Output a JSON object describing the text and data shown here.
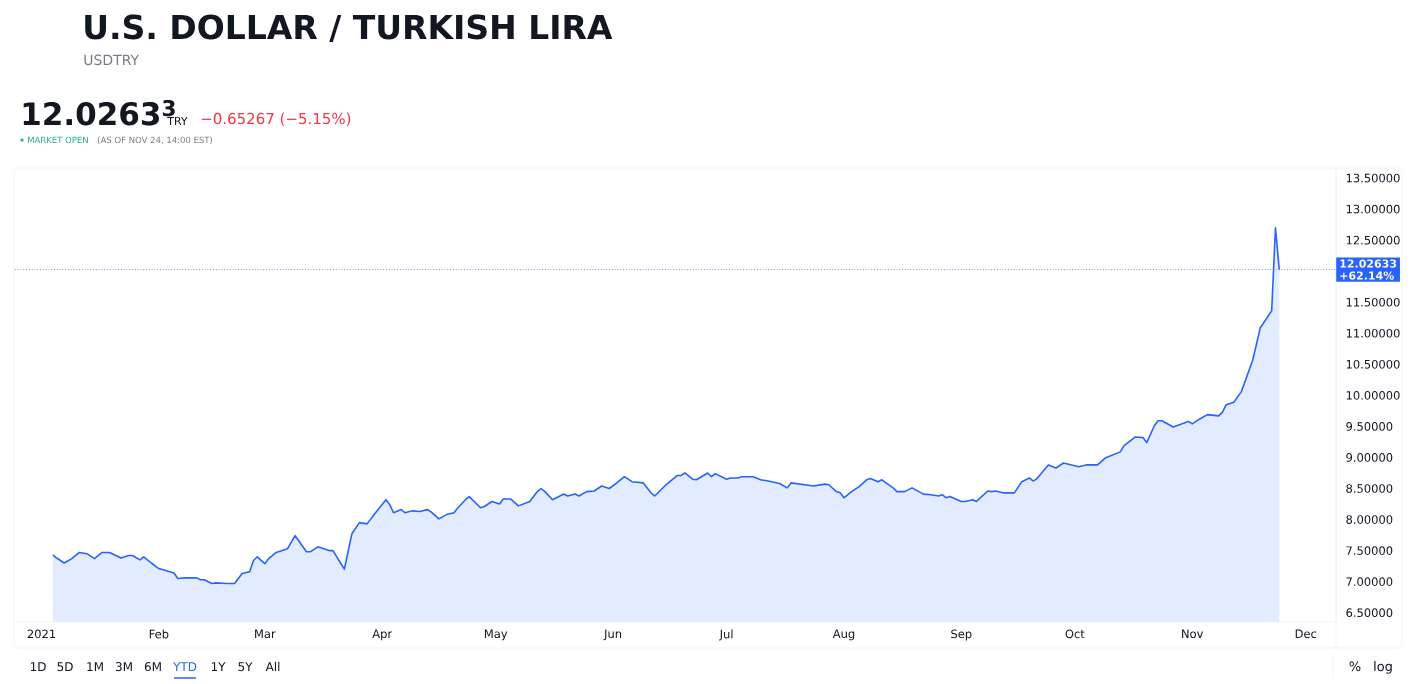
{
  "chart_data": {
    "type": "area",
    "title": "U.S. DOLLAR / TURKISH LIRA",
    "subtitle": "USDTRY",
    "color": "#2962ff",
    "line_style": "solid",
    "x": [
      "2021-01-04",
      "2021-01-05",
      "2021-01-07",
      "2021-01-09",
      "2021-01-11",
      "2021-01-13",
      "2021-01-15",
      "2021-01-17",
      "2021-01-19",
      "2021-01-22",
      "2021-01-24",
      "2021-01-25",
      "2021-01-27",
      "2021-01-28",
      "2021-01-30",
      "2021-02-01",
      "2021-02-05",
      "2021-02-06",
      "2021-02-08",
      "2021-02-11",
      "2021-02-12",
      "2021-02-13",
      "2021-02-15",
      "2021-02-16",
      "2021-02-19",
      "2021-02-21",
      "2021-02-23",
      "2021-02-25",
      "2021-02-26",
      "2021-02-27",
      "2021-03-01",
      "2021-03-02",
      "2021-03-04",
      "2021-03-07",
      "2021-03-09",
      "2021-03-12",
      "2021-03-13",
      "2021-03-15",
      "2021-03-16",
      "2021-03-18",
      "2021-03-19",
      "2021-03-21",
      "2021-03-22",
      "2021-03-24",
      "2021-03-26",
      "2021-03-28",
      "2021-03-30",
      "2021-04-02",
      "2021-04-03",
      "2021-04-04",
      "2021-04-06",
      "2021-04-07",
      "2021-04-09",
      "2021-04-11",
      "2021-04-13",
      "2021-04-14",
      "2021-04-16",
      "2021-04-18",
      "2021-04-20",
      "2021-04-21",
      "2021-04-23",
      "2021-04-24",
      "2021-04-27",
      "2021-04-28",
      "2021-04-30",
      "2021-05-02",
      "2021-05-03",
      "2021-05-05",
      "2021-05-07",
      "2021-05-10",
      "2021-05-12",
      "2021-05-13",
      "2021-05-14",
      "2021-05-16",
      "2021-05-19",
      "2021-05-20",
      "2021-05-22",
      "2021-05-23",
      "2021-05-25",
      "2021-05-27",
      "2021-05-29",
      "2021-05-31",
      "2021-06-02",
      "2021-06-04",
      "2021-06-06",
      "2021-06-09",
      "2021-06-11",
      "2021-06-12",
      "2021-06-15",
      "2021-06-16",
      "2021-06-18",
      "2021-06-19",
      "2021-06-20",
      "2021-06-22",
      "2021-06-23",
      "2021-06-26",
      "2021-06-27",
      "2021-06-28",
      "2021-07-01",
      "2021-07-02",
      "2021-07-04",
      "2021-07-05",
      "2021-07-08",
      "2021-07-10",
      "2021-07-12",
      "2021-07-15",
      "2021-07-17",
      "2021-07-18",
      "2021-07-24",
      "2021-07-27",
      "2021-07-28",
      "2021-07-30",
      "2021-07-31",
      "2021-08-01",
      "2021-08-03",
      "2021-08-05",
      "2021-08-07",
      "2021-08-08",
      "2021-08-10",
      "2021-08-11",
      "2021-08-14",
      "2021-08-15",
      "2021-08-17",
      "2021-08-19",
      "2021-08-22",
      "2021-08-24",
      "2021-08-26",
      "2021-08-27",
      "2021-08-28",
      "2021-08-29",
      "2021-09-01",
      "2021-09-02",
      "2021-09-04",
      "2021-09-05",
      "2021-09-06",
      "2021-09-08",
      "2021-09-09",
      "2021-09-10",
      "2021-09-12",
      "2021-09-15",
      "2021-09-17",
      "2021-09-19",
      "2021-09-20",
      "2021-09-21",
      "2021-09-24",
      "2021-09-26",
      "2021-09-28",
      "2021-10-02",
      "2021-10-04",
      "2021-10-07",
      "2021-10-09",
      "2021-10-13",
      "2021-10-14",
      "2021-10-17",
      "2021-10-19",
      "2021-10-20",
      "2021-10-22",
      "2021-10-23",
      "2021-10-24",
      "2021-10-27",
      "2021-10-31",
      "2021-11-01",
      "2021-11-03",
      "2021-11-05",
      "2021-11-08",
      "2021-11-09",
      "2021-11-10",
      "2021-11-12",
      "2021-11-14",
      "2021-11-17",
      "2021-11-19",
      "2021-11-22",
      "2021-11-23",
      "2021-11-24"
    ],
    "values": [
      7.43,
      7.38,
      7.3,
      7.37,
      7.47,
      7.45,
      7.37,
      7.47,
      7.47,
      7.38,
      7.42,
      7.42,
      7.35,
      7.4,
      7.3,
      7.21,
      7.14,
      7.05,
      7.06,
      7.06,
      7.03,
      7.03,
      6.97,
      6.98,
      6.97,
      6.97,
      7.13,
      7.16,
      7.34,
      7.4,
      7.29,
      7.37,
      7.47,
      7.53,
      7.74,
      7.48,
      7.48,
      7.56,
      7.54,
      7.5,
      7.5,
      7.3,
      7.2,
      7.77,
      7.95,
      7.93,
      8.09,
      8.32,
      8.24,
      8.11,
      8.16,
      8.11,
      8.14,
      8.13,
      8.16,
      8.12,
      8.01,
      8.08,
      8.11,
      8.19,
      8.32,
      8.37,
      8.19,
      8.21,
      8.29,
      8.25,
      8.33,
      8.33,
      8.22,
      8.29,
      8.45,
      8.5,
      8.45,
      8.32,
      8.41,
      8.38,
      8.41,
      8.38,
      8.45,
      8.46,
      8.54,
      8.5,
      8.59,
      8.69,
      8.61,
      8.59,
      8.43,
      8.38,
      8.56,
      8.61,
      8.71,
      8.71,
      8.75,
      8.65,
      8.64,
      8.75,
      8.69,
      8.74,
      8.65,
      8.67,
      8.67,
      8.69,
      8.69,
      8.64,
      8.62,
      8.58,
      8.51,
      8.59,
      8.54,
      8.57,
      8.56,
      8.45,
      8.43,
      8.35,
      8.45,
      8.53,
      8.64,
      8.66,
      8.61,
      8.64,
      8.51,
      8.45,
      8.45,
      8.51,
      8.41,
      8.4,
      8.38,
      8.4,
      8.35,
      8.37,
      8.29,
      8.29,
      8.32,
      8.29,
      8.35,
      8.46,
      8.45,
      8.46,
      8.43,
      8.43,
      8.61,
      8.67,
      8.62,
      8.66,
      8.88,
      8.83,
      8.91,
      8.85,
      8.88,
      8.88,
      8.99,
      9.09,
      9.19,
      9.33,
      9.32,
      9.24,
      9.51,
      9.59,
      9.59,
      9.49,
      9.58,
      9.54,
      9.62,
      9.69,
      9.67,
      9.73,
      9.85,
      9.89,
      10.06,
      10.57,
      11.09,
      11.36,
      12.7,
      12.02633
    ],
    "xlim": [
      "2020-12-25",
      "2021-12-09"
    ],
    "xticks": [
      {
        "value": "2021-01-01",
        "label": "2021"
      },
      {
        "value": "2021-02-01",
        "label": "Feb"
      },
      {
        "value": "2021-03-01",
        "label": "Mar"
      },
      {
        "value": "2021-04-01",
        "label": "Apr"
      },
      {
        "value": "2021-05-01",
        "label": "May"
      },
      {
        "value": "2021-06-01",
        "label": "Jun"
      },
      {
        "value": "2021-07-01",
        "label": "Jul"
      },
      {
        "value": "2021-08-01",
        "label": "Aug"
      },
      {
        "value": "2021-09-01",
        "label": "Sep"
      },
      {
        "value": "2021-10-01",
        "label": "Oct"
      },
      {
        "value": "2021-11-01",
        "label": "Nov"
      },
      {
        "value": "2021-12-01",
        "label": "Dec"
      }
    ],
    "ylim": [
      6.35,
      13.63
    ],
    "yticks": [
      {
        "value": 6.5,
        "label": "6.50000"
      },
      {
        "value": 7.0,
        "label": "7.00000"
      },
      {
        "value": 7.5,
        "label": "7.50000"
      },
      {
        "value": 8.0,
        "label": "8.00000"
      },
      {
        "value": 8.5,
        "label": "8.50000"
      },
      {
        "value": 9.0,
        "label": "9.00000"
      },
      {
        "value": 9.5,
        "label": "9.50000"
      },
      {
        "value": 10.0,
        "label": "10.00000"
      },
      {
        "value": 10.5,
        "label": "10.50000"
      },
      {
        "value": 11.0,
        "label": "11.00000"
      },
      {
        "value": 11.5,
        "label": "11.50000"
      },
      {
        "value": 12.0,
        "label": null
      },
      {
        "value": 12.5,
        "label": "12.50000"
      },
      {
        "value": 13.0,
        "label": "13.00000"
      },
      {
        "value": 13.5,
        "label": "13.50000"
      }
    ],
    "ref_lines": [
      {
        "axis": "y",
        "value": 12.02633,
        "label": "12.02633",
        "color": "#2962ff",
        "line_style": "dotted"
      }
    ],
    "annotations": [
      "12.0263$^{3}$",
      "TRY",
      "−0.65267 (−5.15%)",
      "MARKET OPEN",
      "(AS OF NOV 24, 14:00 EST)",
      "+62.14%",
      "1D",
      "5D",
      "1M",
      "3M",
      "6M",
      "YTD",
      "1Y",
      "5Y",
      "All",
      "%",
      "log"
    ]
  }
}
